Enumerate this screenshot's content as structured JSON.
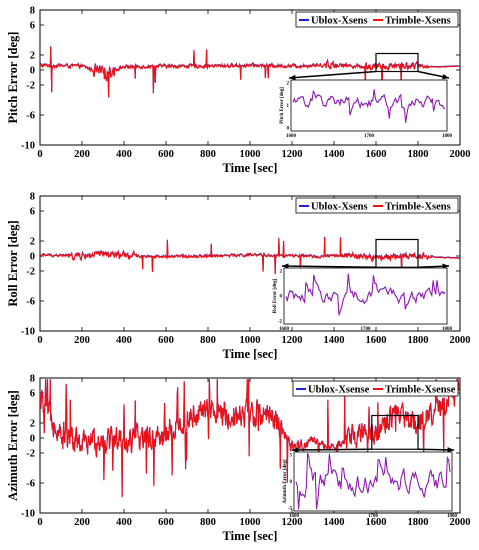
{
  "chart_data": [
    {
      "type": "line",
      "xlabel": "Time [sec]",
      "ylabel": "Pitch Error [deg]",
      "xlim": [
        0,
        2000
      ],
      "ylim": [
        -10,
        8
      ],
      "xticks": [
        "0",
        "200",
        "400",
        "600",
        "800",
        "1000",
        "1200",
        "1400",
        "1600",
        "1800",
        "2000"
      ],
      "yticks": [
        "8",
        "6",
        "2",
        "0",
        "-2",
        "-6",
        "-10"
      ],
      "legend": [
        "Ublox-Xsens",
        "Trimble-Xsens"
      ],
      "legend_position": "top-right",
      "series": [
        {
          "name": "Ublox-Xsens",
          "color": "#1f1fe0",
          "x": [
            0,
            200,
            300,
            400,
            600,
            800,
            1000,
            1200,
            1300,
            1400,
            1500,
            1600,
            1700,
            1800,
            1900,
            2000
          ],
          "y": [
            0.6,
            0.5,
            -0.5,
            0.4,
            0.5,
            0.5,
            0.6,
            0.5,
            0.6,
            0.7,
            0.5,
            0.4,
            0.6,
            0.5,
            0.4,
            0.5
          ]
        },
        {
          "name": "Trimble-Xsens",
          "color": "#ee1111",
          "x": [
            0,
            200,
            300,
            400,
            600,
            800,
            1000,
            1200,
            1300,
            1400,
            1500,
            1600,
            1700,
            1800,
            1900,
            2000
          ],
          "y": [
            0.6,
            0.5,
            -0.5,
            0.4,
            0.5,
            0.5,
            0.6,
            0.5,
            0.6,
            0.7,
            0.5,
            0.4,
            0.6,
            0.5,
            0.4,
            0.5
          ]
        }
      ],
      "zoom_box": {
        "x": [
          1600,
          1800
        ],
        "y": [
          -0.2,
          2.2
        ]
      },
      "inset": {
        "ylabel": "Pitch Error [deg]",
        "xlim": [
          1600,
          1800
        ],
        "xticks": [
          "1600",
          "1700",
          "1800"
        ],
        "yticks": [
          "2",
          "1",
          "0"
        ]
      }
    },
    {
      "type": "line",
      "xlabel": "Time [sec]",
      "ylabel": "Roll Error [deg]",
      "xlim": [
        0,
        2000
      ],
      "ylim": [
        -10,
        8
      ],
      "xticks": [
        "0",
        "200",
        "400",
        "600",
        "800",
        "1000",
        "1200",
        "1400",
        "1600",
        "1800",
        "2000"
      ],
      "yticks": [
        "8",
        "6",
        "2",
        "0",
        "-2",
        "-6",
        "-10"
      ],
      "legend": [
        "Ublox-Xsens",
        "Trimble-Xsens"
      ],
      "legend_position": "top-right",
      "series": [
        {
          "name": "Ublox-Xsens",
          "color": "#1f1fe0",
          "x": [
            0,
            200,
            300,
            400,
            600,
            800,
            1000,
            1200,
            1300,
            1400,
            1500,
            1600,
            1700,
            1800,
            1900,
            2000
          ],
          "y": [
            0.1,
            0.0,
            0.2,
            0.0,
            -0.1,
            0.0,
            0.1,
            0.0,
            -0.1,
            0.0,
            0.0,
            -0.3,
            0.0,
            0.0,
            -0.2,
            -0.3
          ]
        },
        {
          "name": "Trimble-Xsens",
          "color": "#ee1111",
          "x": [
            0,
            200,
            300,
            400,
            600,
            800,
            1000,
            1200,
            1300,
            1400,
            1500,
            1600,
            1700,
            1800,
            1900,
            2000
          ],
          "y": [
            0.1,
            0.0,
            0.2,
            0.0,
            -0.1,
            0.0,
            0.1,
            0.0,
            -0.1,
            0.0,
            0.0,
            -0.3,
            0.0,
            0.0,
            -0.2,
            -0.3
          ]
        }
      ],
      "zoom_box": {
        "x": [
          1600,
          1800
        ],
        "y": [
          -1.5,
          2.2
        ]
      },
      "inset": {
        "ylabel": "Roll Error [deg]",
        "xlim": [
          1600,
          1800
        ],
        "xticks": [
          "1600",
          "1700",
          "1800"
        ],
        "yticks": [
          "2",
          "0",
          "-2"
        ]
      }
    },
    {
      "type": "line",
      "xlabel": "Time [sec]",
      "ylabel": "Azimuth Error [deg]",
      "xlim": [
        0,
        2000
      ],
      "ylim": [
        -10,
        8
      ],
      "xticks": [
        "0",
        "200",
        "400",
        "600",
        "800",
        "1000",
        "1200",
        "1400",
        "1600",
        "1800",
        "2000"
      ],
      "yticks": [
        "8",
        "6",
        "2",
        "0",
        "-2",
        "-6",
        "-10"
      ],
      "legend": [
        "Ublox-Xsense",
        "Trimble-Xsense"
      ],
      "legend_position": "top-right",
      "series": [
        {
          "name": "Ublox-Xsense",
          "color": "#1f1fe0",
          "x": [
            0,
            100,
            200,
            300,
            400,
            500,
            600,
            700,
            800,
            900,
            1000,
            1100,
            1150,
            1200,
            1300,
            1400,
            1500,
            1600,
            1700,
            1800,
            1900,
            2000
          ],
          "y": [
            5.0,
            1.0,
            -1.0,
            0.0,
            -0.5,
            0.0,
            0.5,
            2.5,
            3.5,
            3.0,
            3.5,
            3.5,
            1.0,
            -1.5,
            -0.5,
            -1.5,
            0.5,
            1.0,
            3.0,
            2.0,
            4.0,
            6.5
          ]
        },
        {
          "name": "Trimble-Xsense",
          "color": "#ee1111",
          "x": [
            0,
            100,
            200,
            300,
            400,
            500,
            600,
            700,
            800,
            900,
            1000,
            1100,
            1150,
            1200,
            1300,
            1400,
            1500,
            1600,
            1700,
            1800,
            1900,
            2000
          ],
          "y": [
            5.0,
            1.0,
            -1.0,
            0.0,
            -0.5,
            0.0,
            0.5,
            2.5,
            3.5,
            3.0,
            3.5,
            3.5,
            1.0,
            -1.5,
            -0.5,
            -1.5,
            0.5,
            1.0,
            3.0,
            2.0,
            4.0,
            6.5
          ]
        }
      ],
      "zoom_box": {
        "x": [
          1580,
          1800
        ],
        "y": [
          -1.5,
          3.0
        ]
      },
      "inset": {
        "ylabel": "Azimuth Error [deg]",
        "xlim": [
          1600,
          1800
        ],
        "xticks": [
          "1600",
          "1700",
          "1800"
        ],
        "yticks": [
          "5",
          "0",
          "-5"
        ]
      }
    }
  ]
}
